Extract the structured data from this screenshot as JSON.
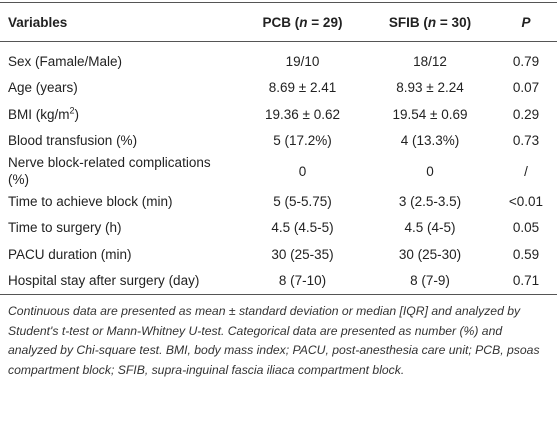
{
  "table": {
    "header": [
      "Variables",
      [
        "PCB (",
        "n",
        " = 29)"
      ],
      [
        "SFIB (",
        "n",
        " = 30)"
      ],
      "P"
    ],
    "rows": [
      [
        "Sex (Famale/Male)",
        "19/10",
        "18/12",
        "0.79"
      ],
      [
        "Age (years)",
        "8.69 ± 2.41",
        "8.93 ± 2.24",
        "0.07"
      ],
      [
        [
          "BMI (kg/m",
          "2",
          ")"
        ],
        "19.36 ± 0.62",
        "19.54 ± 0.69",
        "0.29"
      ],
      [
        "Blood transfusion (%)",
        "5 (17.2%)",
        "4 (13.3%)",
        "0.73"
      ],
      [
        "Nerve block-related complications (%)",
        "0",
        "0",
        "/"
      ],
      [
        "Time to achieve block (min)",
        "5 (5-5.75)",
        "3 (2.5-3.5)",
        "<0.01"
      ],
      [
        "Time to surgery (h)",
        "4.5 (4.5-5)",
        "4.5 (4-5)",
        "0.05"
      ],
      [
        "PACU duration (min)",
        "30 (25-35)",
        "30 (25-30)",
        "0.59"
      ],
      [
        "Hospital stay after surgery (day)",
        "8 (7-10)",
        "8 (7-9)",
        "0.71"
      ]
    ],
    "footnote": "Continuous data are presented as mean ± standard deviation or median [IQR] and analyzed by Student's t-test or Mann-Whitney U-test. Categorical data are presented as number (%) and analyzed by Chi-square test. BMI, body mass index; PACU, post-anesthesia care unit; PCB, psoas compartment block; SFIB, supra-inguinal fascia iliaca compartment block."
  }
}
